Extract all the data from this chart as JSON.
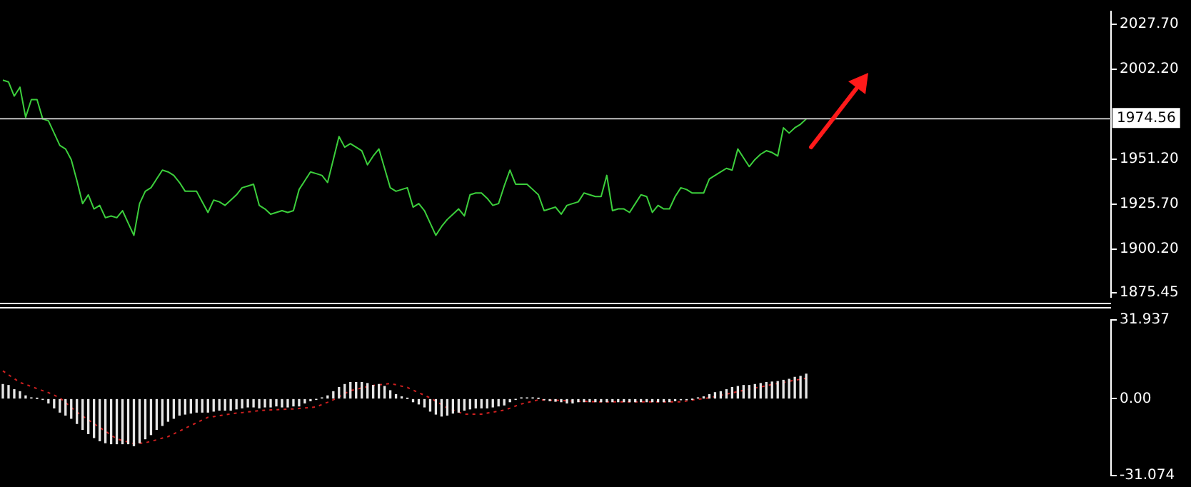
{
  "chart_data": [
    {
      "type": "line",
      "marker": "none",
      "grid": false,
      "legend": false,
      "tick_labels": "y",
      "ylim": [
        1873,
        2035
      ],
      "yticks": [
        {
          "value": 2027.7,
          "label": "2027.70"
        },
        {
          "value": 2002.2,
          "label": "2002.20"
        },
        {
          "value": 1951.2,
          "label": "1951.20"
        },
        {
          "value": 1925.7,
          "label": "1925.70"
        },
        {
          "value": 1900.2,
          "label": "1900.20"
        },
        {
          "value": 1875.45,
          "label": "1875.45"
        }
      ],
      "ref_lines": [
        {
          "axis": "y",
          "value": 1974.56,
          "label": "1974.56",
          "color": "#c0c0c0"
        }
      ],
      "categories": [
        null,
        null,
        null,
        null,
        null,
        null,
        null,
        null,
        null,
        null,
        null,
        null,
        null,
        null,
        null,
        null,
        null,
        null,
        null,
        null,
        null,
        null,
        null,
        null,
        null,
        null,
        null,
        null,
        null,
        null,
        null,
        null,
        null,
        null,
        null,
        null,
        null,
        null,
        null,
        null,
        null,
        null,
        null,
        null,
        null,
        null,
        null,
        null,
        null,
        null,
        null,
        null,
        null,
        null,
        null,
        null,
        null,
        null,
        null,
        null,
        null,
        null,
        null,
        null,
        null,
        null,
        null,
        null,
        null,
        null,
        null,
        null,
        null,
        null,
        null,
        null,
        null,
        null,
        null,
        null,
        null,
        null,
        null,
        null,
        null,
        null,
        null,
        null,
        null,
        null,
        null,
        null,
        null,
        null,
        null,
        null,
        null,
        null,
        null,
        null,
        null,
        null,
        null,
        null,
        null,
        null,
        null,
        null,
        null,
        null,
        null,
        null,
        null,
        null,
        null,
        null,
        null,
        null,
        null,
        null,
        null,
        null,
        null,
        null,
        null,
        null,
        null,
        null,
        null,
        null,
        null,
        null,
        null,
        null,
        null,
        null,
        null,
        null,
        null,
        null,
        null,
        null,
        null,
        null,
        null,
        null,
        null,
        null,
        null,
        null,
        null,
        null,
        null,
        null,
        null,
        null,
        null,
        null,
        null,
        null,
        null,
        null,
        null,
        null,
        null,
        null,
        null,
        null,
        null,
        null,
        null,
        null,
        null,
        null,
        null,
        null,
        null,
        null,
        null,
        null,
        null,
        null,
        null,
        null,
        null,
        null,
        null,
        null,
        null,
        null,
        null,
        null,
        null,
        null,
        null
      ],
      "series": [
        {
          "color": "#3ccf3c",
          "values": [
            1996,
            1995,
            1987,
            1992,
            1975,
            1985,
            1985,
            1974,
            1973,
            1966,
            1959,
            1957,
            1951,
            1939,
            1926,
            1931,
            1923,
            1925,
            1918,
            1919,
            1918,
            1922,
            1915,
            1908,
            1926,
            1933,
            1935,
            1940,
            1945,
            1944,
            1942,
            1938,
            1933,
            1933,
            1933,
            1927,
            1921,
            1928,
            1927,
            1925,
            1928,
            1931,
            1935,
            1936,
            1937,
            1925,
            1923,
            1920,
            1921,
            1922,
            1921,
            1922,
            1934,
            1939,
            1944,
            1943,
            1942,
            1938,
            1951,
            1964,
            1958,
            1960,
            1958,
            1956,
            1948,
            1953,
            1957,
            1946,
            1935,
            1933,
            1934,
            1935,
            1924,
            1926,
            1922,
            1915,
            1908,
            1913,
            1917,
            1920,
            1923,
            1919,
            1931,
            1932,
            1932,
            1929,
            1925,
            1926,
            1936,
            1945,
            1937,
            1937,
            1937,
            1934,
            1931,
            1922,
            1923,
            1924,
            1920,
            1925,
            1926,
            1927,
            1932,
            1931,
            1930,
            1930,
            1942,
            1922,
            1923,
            1923,
            1921,
            1926,
            1931,
            1930,
            1921,
            1925,
            1923,
            1923,
            1930,
            1935,
            1934,
            1932,
            1932,
            1932,
            1940,
            1942,
            1944,
            1946,
            1945,
            1957,
            1952,
            1947,
            1951,
            1954,
            1956,
            1955,
            1953,
            1969,
            1966,
            1969,
            1971,
            1974,
            null,
            null,
            null,
            null,
            null,
            null,
            null,
            null,
            null,
            null,
            null,
            null,
            null,
            null,
            null,
            null,
            null,
            null,
            null,
            null,
            null,
            null,
            null,
            null,
            null,
            null,
            null,
            null,
            null,
            null,
            null,
            null,
            null,
            null,
            null,
            null,
            null,
            null,
            null,
            null,
            null,
            null,
            null,
            null,
            null,
            null,
            null,
            null,
            null,
            null,
            null,
            null,
            null
          ]
        }
      ]
    },
    {
      "type": "bar",
      "marker": "none",
      "grid": false,
      "legend": false,
      "tick_labels": "y",
      "ylim": [
        -31.074,
        31.937
      ],
      "yticks": [
        {
          "value": 31.937,
          "label": "31.937"
        },
        {
          "value": 0,
          "label": "0.00"
        },
        {
          "value": -31.074,
          "label": "-31.074"
        }
      ],
      "categories": [
        null,
        null,
        null,
        null,
        null,
        null,
        null,
        null,
        null,
        null,
        null,
        null,
        null,
        null,
        null,
        null,
        null,
        null,
        null,
        null,
        null,
        null,
        null,
        null,
        null,
        null,
        null,
        null,
        null,
        null,
        null,
        null,
        null,
        null,
        null,
        null,
        null,
        null,
        null,
        null,
        null,
        null,
        null,
        null,
        null,
        null,
        null,
        null,
        null,
        null,
        null,
        null,
        null,
        null,
        null,
        null,
        null,
        null,
        null,
        null,
        null,
        null,
        null,
        null,
        null,
        null,
        null,
        null,
        null,
        null,
        null,
        null,
        null,
        null,
        null,
        null,
        null,
        null,
        null,
        null,
        null,
        null,
        null,
        null,
        null,
        null,
        null,
        null,
        null,
        null,
        null,
        null,
        null,
        null,
        null,
        null,
        null,
        null,
        null,
        null,
        null,
        null,
        null,
        null,
        null,
        null,
        null,
        null,
        null,
        null,
        null,
        null,
        null,
        null,
        null,
        null,
        null,
        null,
        null,
        null,
        null,
        null,
        null,
        null,
        null,
        null,
        null,
        null,
        null,
        null,
        null,
        null,
        null,
        null,
        null,
        null,
        null,
        null,
        null,
        null,
        null,
        null,
        null,
        null,
        null,
        null,
        null,
        null,
        null,
        null,
        null,
        null,
        null,
        null,
        null,
        null,
        null,
        null,
        null,
        null,
        null,
        null,
        null,
        null,
        null,
        null,
        null,
        null,
        null,
        null,
        null,
        null,
        null,
        null,
        null,
        null,
        null,
        null,
        null,
        null,
        null,
        null,
        null,
        null,
        null,
        null,
        null,
        null,
        null,
        null,
        null,
        null,
        null,
        null,
        null
      ],
      "series": [
        {
          "type": "bar",
          "color": "#e6e6e6",
          "values": [
            5.8,
            5.4,
            3.7,
            2.9,
            1.2,
            0.4,
            0.1,
            -0.2,
            -1.7,
            -3.7,
            -5.4,
            -6.6,
            -7.9,
            -10,
            -12.4,
            -14.1,
            -15.7,
            -17,
            -17.8,
            -18.2,
            -18.2,
            -18.2,
            -18.2,
            -19,
            -17.8,
            -16.2,
            -14.5,
            -12.4,
            -10.8,
            -9.1,
            -7.9,
            -6.6,
            -6.2,
            -5.8,
            -5.4,
            -5.4,
            -5.4,
            -5,
            -4.6,
            -4.6,
            -4.6,
            -4.1,
            -3.7,
            -3.3,
            -3.3,
            -3.7,
            -3.3,
            -3.3,
            -2.9,
            -3.3,
            -3.3,
            -2.9,
            -2.9,
            -1.7,
            -0.8,
            -0.2,
            0.4,
            1.2,
            2.9,
            4.6,
            5.8,
            6.6,
            6.6,
            6.6,
            6.2,
            5.4,
            5.8,
            5,
            3.3,
            1.7,
            0.8,
            0.1,
            -1.2,
            -2.1,
            -3.3,
            -5,
            -6.2,
            -7,
            -6.6,
            -5.8,
            -5.4,
            -4.6,
            -4.1,
            -3.7,
            -3.7,
            -3.7,
            -3.3,
            -2.9,
            -2.5,
            -1.2,
            -0.2,
            0.4,
            0.4,
            0.4,
            0.1,
            -0.4,
            -0.8,
            -1,
            -1.2,
            -1.7,
            -1.7,
            -1.2,
            -1.2,
            -1.2,
            -1.2,
            -1.2,
            -1.2,
            -1.2,
            -1.2,
            -1.2,
            -1.2,
            -1.2,
            -1.2,
            -1.2,
            -1.2,
            -1.2,
            -1.2,
            -1.2,
            -0.8,
            -0.4,
            -0.4,
            -0.1,
            0.4,
            0.8,
            1.7,
            2.5,
            2.9,
            3.7,
            4.6,
            5,
            5.4,
            5.4,
            5.8,
            6.2,
            6.6,
            6.8,
            7,
            7.5,
            7.9,
            8.7,
            9.1,
            10,
            null,
            null,
            null,
            null,
            null,
            null,
            null,
            null,
            null,
            null,
            null,
            null,
            null,
            null,
            null,
            null,
            null,
            null,
            null,
            null,
            null,
            null,
            null,
            null,
            null,
            null,
            null,
            null,
            null,
            null,
            null,
            null,
            null,
            null,
            null,
            null,
            null,
            null,
            null,
            null,
            null,
            null,
            null,
            null,
            null,
            null,
            null,
            null,
            null,
            null,
            null,
            null,
            null
          ]
        },
        {
          "type": "line",
          "color": "#d02020",
          "line_style": "dotted",
          "values": [
            11.3,
            9.7,
            8.2,
            6.6,
            5.8,
            5.0,
            4.1,
            3.3,
            2.5,
            1.5,
            0.4,
            -1.5,
            -3.5,
            -5.4,
            -7.0,
            -8.5,
            -10.1,
            -11.6,
            -13.1,
            -14.7,
            -16.2,
            -16.9,
            -17.5,
            -18.2,
            -18.0,
            -17.8,
            -17.2,
            -16.6,
            -15.9,
            -15.3,
            -14.2,
            -13.1,
            -11.9,
            -10.8,
            -9.7,
            -8.6,
            -7.5,
            -7.2,
            -6.8,
            -6.5,
            -6.1,
            -5.8,
            -5.6,
            -5.3,
            -5.1,
            -4.8,
            -4.6,
            -4.5,
            -4.4,
            -4.3,
            -4.2,
            -4.1,
            -3.9,
            -3.7,
            -3.5,
            -3.3,
            -2.3,
            -1.4,
            -0.4,
            0.8,
            2.1,
            3.3,
            3.8,
            4.4,
            4.9,
            5.4,
            5.7,
            5.9,
            6.2,
            5.7,
            5.1,
            4.6,
            3.5,
            2.5,
            1.4,
            0.4,
            -1.0,
            -2.3,
            -3.7,
            -4.5,
            -5.4,
            -6.2,
            -6.2,
            -6.2,
            -6.2,
            -5.8,
            -5.4,
            -5.0,
            -4.6,
            -3.8,
            -2.9,
            -2.1,
            -1.5,
            -1.0,
            -0.4,
            -0.5,
            -0.6,
            -0.6,
            -0.7,
            -0.8,
            -0.9,
            -1.0,
            -1.0,
            -1.1,
            -1.2,
            -1.2,
            -1.2,
            -1.2,
            -1.2,
            -1.2,
            -1.2,
            -1.2,
            -1.2,
            -1.2,
            -1.2,
            -1.2,
            -1.2,
            -1.2,
            -1.2,
            -1.2,
            -0.9,
            -0.5,
            -0.2,
            0.1,
            0.4,
            0.9,
            1.4,
            1.9,
            2.4,
            2.9,
            3.4,
            3.9,
            4.4,
            4.8,
            5.3,
            5.8,
            6.2,
            6.6,
            7.1,
            7.5,
            7.9,
            8.3,
            null,
            null,
            null,
            null,
            null,
            null,
            null,
            null,
            null,
            null,
            null,
            null,
            null,
            null,
            null,
            null,
            null,
            null,
            null,
            null,
            null,
            null,
            null,
            null,
            null,
            null,
            null,
            null,
            null,
            null,
            null,
            null,
            null,
            null,
            null,
            null,
            null,
            null,
            null,
            null,
            null,
            null,
            null,
            null,
            null,
            null,
            null,
            null,
            null,
            null,
            null,
            null,
            null
          ]
        }
      ]
    }
  ]
}
